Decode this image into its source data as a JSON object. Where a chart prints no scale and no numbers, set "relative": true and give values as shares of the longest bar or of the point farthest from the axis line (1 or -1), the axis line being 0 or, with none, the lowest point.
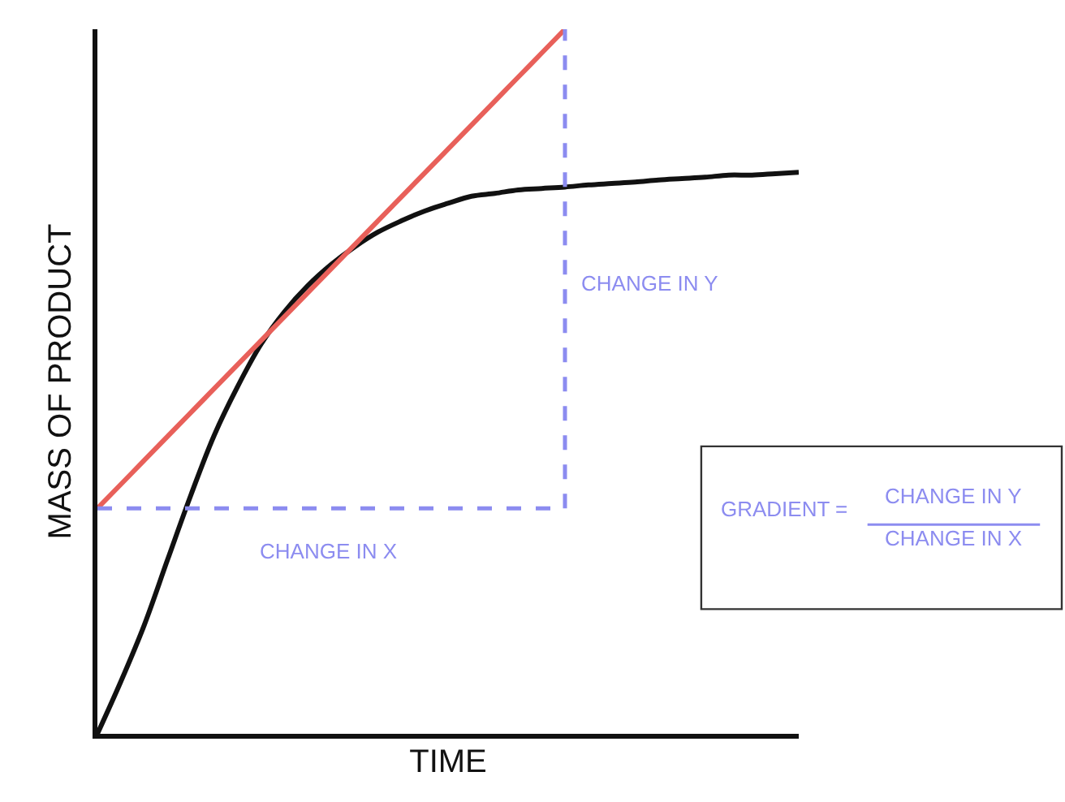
{
  "chart_data": {
    "type": "line",
    "relative": true,
    "xlabel": "TIME",
    "ylabel": "MASS OF PRODUCT",
    "categories": [
      null,
      null,
      null,
      null,
      null,
      null,
      null,
      null,
      null,
      null,
      null,
      null,
      null,
      null,
      null,
      null,
      null,
      null,
      null,
      null,
      null,
      null,
      null,
      null,
      null,
      null,
      null,
      null,
      null,
      null,
      null
    ],
    "series": [
      {
        "type": "line",
        "color": "#111111",
        "values": [
          0,
          0.074,
          0.154,
          0.247,
          0.339,
          0.424,
          0.493,
          0.553,
          0.599,
          0.636,
          0.666,
          0.691,
          0.712,
          0.728,
          0.742,
          0.753,
          0.763,
          0.767,
          0.772,
          0.774,
          0.776,
          0.779,
          0.781,
          0.783,
          0.786,
          0.788,
          0.79,
          0.793,
          0.793,
          0.795,
          0.797
        ]
      },
      {
        "type": "line",
        "color": "#e8605a",
        "values": [
          0.32,
          0.354,
          0.388,
          0.422,
          0.456,
          0.49,
          0.524,
          0.558,
          0.592,
          0.626,
          0.66,
          0.694,
          0.728,
          0.762,
          0.796,
          0.83,
          0.864,
          0.898,
          0.932,
          0.966,
          1.0,
          null,
          null,
          null,
          null,
          null,
          null,
          null,
          null,
          null,
          null
        ]
      },
      {
        "type": "step",
        "color": "#8c8cf0",
        "line_style": "dashed",
        "values": [
          0.32,
          0.32,
          0.32,
          0.32,
          0.32,
          0.32,
          0.32,
          0.32,
          0.32,
          0.32,
          0.32,
          0.32,
          0.32,
          0.32,
          0.32,
          0.32,
          0.32,
          0.32,
          0.32,
          0.32,
          1.0,
          null,
          null,
          null,
          null,
          null,
          null,
          null,
          null,
          null,
          null
        ]
      }
    ],
    "annotations": [
      "CHANGE IN Y",
      "CHANGE IN X",
      "GRADIENT =",
      "CHANGE IN Y",
      "CHANGE IN X"
    ],
    "tick_labels": false,
    "legend": false
  }
}
